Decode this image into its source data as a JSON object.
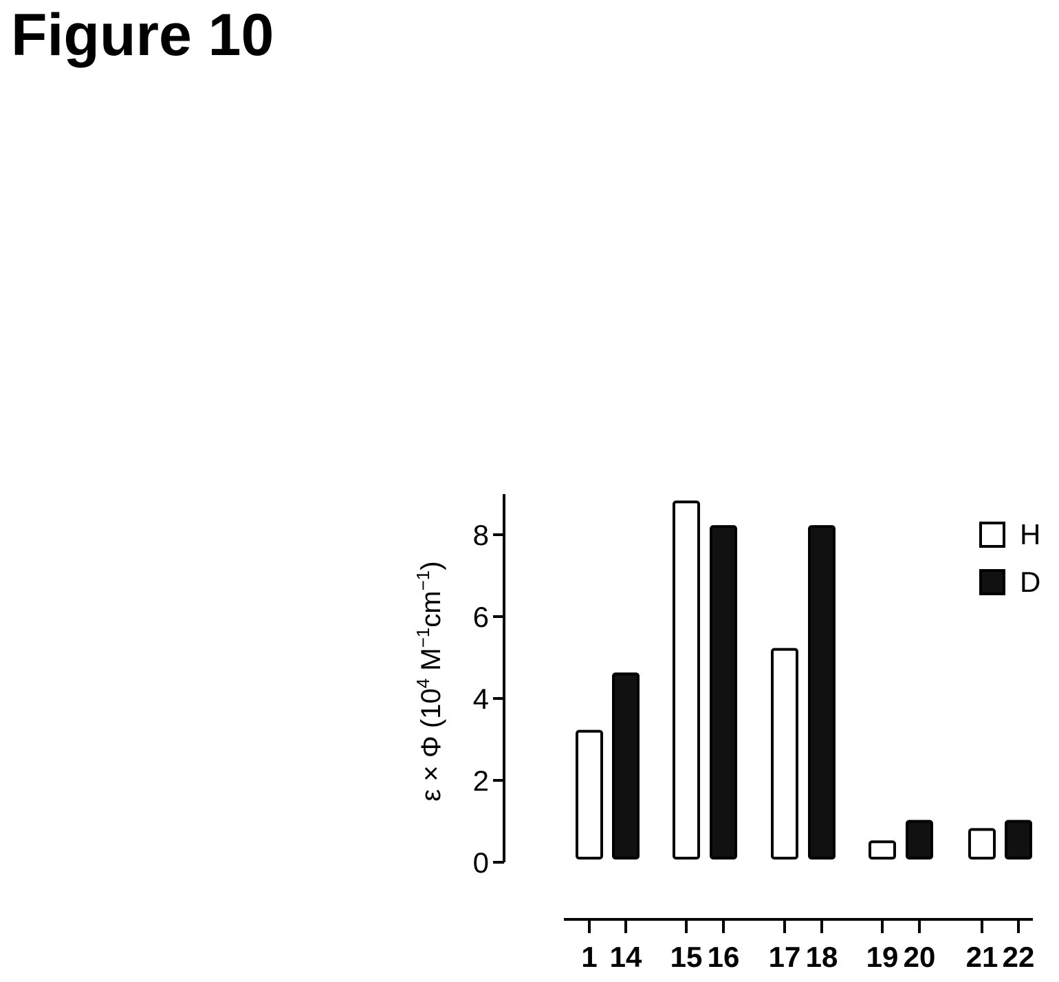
{
  "figure": {
    "title": "Figure 10"
  },
  "chart_data": {
    "type": "bar",
    "title": "",
    "xlabel": "",
    "ylabel": {
      "prefix": "ε × Φ (10",
      "exp1": "4",
      "mid": " M",
      "exp2": "−1",
      "mid2": "cm",
      "exp3": "−1",
      "suffix": ")"
    },
    "ylim": [
      0,
      9
    ],
    "yticks": [
      "0",
      "2",
      "4",
      "6",
      "8"
    ],
    "yticks_values": [
      0,
      2,
      4,
      6,
      8
    ],
    "legend_position": "right",
    "series": [
      {
        "name": "H",
        "color": "#ffffff"
      },
      {
        "name": "D",
        "color": "#111111"
      }
    ],
    "bars": [
      {
        "label": "1",
        "value": 3.2,
        "series": "H"
      },
      {
        "label": "14",
        "value": 4.6,
        "series": "D"
      },
      {
        "label": "15",
        "value": 8.8,
        "series": "H"
      },
      {
        "label": "16",
        "value": 8.2,
        "series": "D"
      },
      {
        "label": "17",
        "value": 5.2,
        "series": "H"
      },
      {
        "label": "18",
        "value": 8.2,
        "series": "D"
      },
      {
        "label": "19",
        "value": 0.5,
        "series": "H"
      },
      {
        "label": "20",
        "value": 1.0,
        "series": "D"
      },
      {
        "label": "21",
        "value": 0.8,
        "series": "H"
      },
      {
        "label": "22",
        "value": 1.0,
        "series": "D"
      }
    ]
  }
}
